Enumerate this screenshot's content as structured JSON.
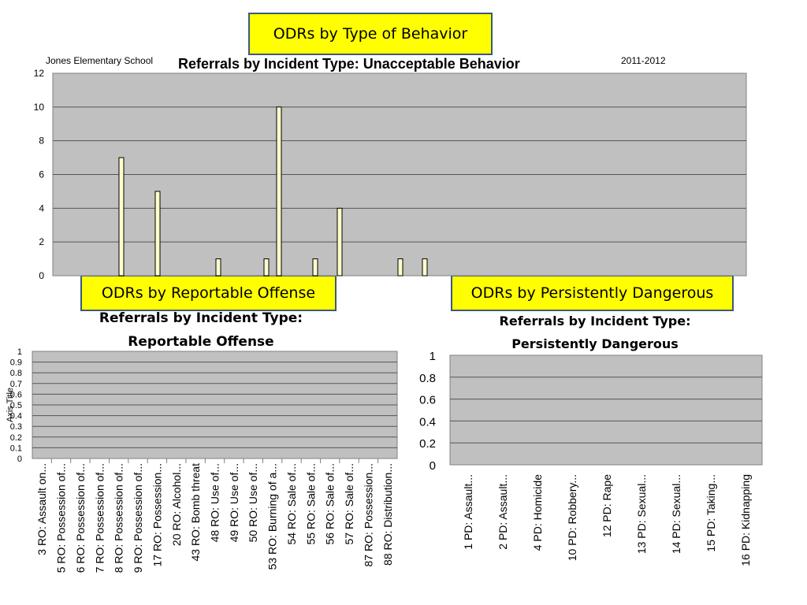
{
  "headers": {
    "behavior": "ODRs by Type of Behavior",
    "reportable": "ODRs by Reportable Offense",
    "dangerous": "ODRs by Persistently Dangerous"
  },
  "chart_data": [
    {
      "type": "bar",
      "title": "Referrals by Incident Type:  Unacceptable Behavior",
      "school": "Jones Elementary School",
      "year": "2011-2012",
      "values": [
        7,
        5,
        1,
        1,
        10,
        1,
        4,
        1,
        1
      ],
      "ylim": [
        0,
        12
      ],
      "yticks": [
        "0",
        "2",
        "4",
        "6",
        "8",
        "10",
        "12"
      ],
      "grid": true,
      "bar_color": "#ffffcc",
      "plot_color": "#c0c0c0"
    },
    {
      "type": "bar",
      "title_lines": [
        "Referrals by Incident Type:",
        "Reportable Offense"
      ],
      "ylabel": "Axis Title",
      "categories": [
        "3 RO: Assault on...",
        "5 RO: Possession of...",
        "6 RO: Possession of...",
        "7 RO: Possession of...",
        "8 RO: Possession of...",
        "9 RO: Possession of...",
        "17 RO: Possession...",
        "20 RO: Alcohol...",
        "43 RO: Bomb threat",
        "48 RO: Use of...",
        "49 RO: Use of...",
        "50 RO: Use of...",
        "53 RO: Burning of a...",
        "54 RO: Sale of...",
        "55 RO: Sale of...",
        "56 RO: Sale of...",
        "57 RO: Sale of...",
        "87 RO: Possession...",
        "88 RO: Distribution..."
      ],
      "values": [
        0,
        0,
        0,
        0,
        0,
        0,
        0,
        0,
        0,
        0,
        0,
        0,
        0,
        0,
        0,
        0,
        0,
        0,
        0
      ],
      "ylim": [
        0,
        1
      ],
      "yticks": [
        "0",
        "0.1",
        "0.2",
        "0.3",
        "0.4",
        "0.5",
        "0.6",
        "0.7",
        "0.8",
        "0.9",
        "1"
      ],
      "grid": true,
      "plot_color": "#c0c0c0"
    },
    {
      "type": "bar",
      "title_lines": [
        "Referrals by Incident Type:",
        "Persistently Dangerous"
      ],
      "categories": [
        "1 PD: Assault...",
        "2 PD: Assault...",
        "4 PD: Homicide",
        "10 PD: Robbery...",
        "12 PD: Rape",
        "13 PD: Sexual...",
        "14 PD: Sexual...",
        "15 PD: Taking...",
        "16 PD: Kidnapping"
      ],
      "values": [
        0,
        0,
        0,
        0,
        0,
        0,
        0,
        0,
        0
      ],
      "ylim": [
        0,
        1
      ],
      "yticks": [
        "0",
        "0.2",
        "0.4",
        "0.6",
        "0.8",
        "1"
      ],
      "grid": true,
      "plot_color": "#c0c0c0"
    }
  ]
}
